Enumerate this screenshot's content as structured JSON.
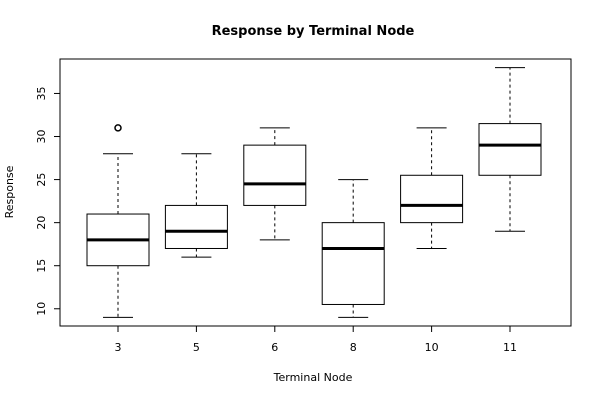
{
  "chart_data": {
    "type": "boxplot",
    "title": "Response by Terminal Node",
    "xlabel": "Terminal Node",
    "ylabel": "Response",
    "ylim": [
      8,
      39
    ],
    "yticks": [
      10,
      15,
      20,
      25,
      30,
      35
    ],
    "categories": [
      "3",
      "5",
      "6",
      "8",
      "10",
      "11"
    ],
    "boxes": [
      {
        "category": "3",
        "min": 9,
        "q1": 15,
        "median": 18,
        "q3": 21,
        "max": 28,
        "outliers": [
          31
        ]
      },
      {
        "category": "5",
        "min": 16,
        "q1": 17,
        "median": 19,
        "q3": 22,
        "max": 28,
        "outliers": []
      },
      {
        "category": "6",
        "min": 18,
        "q1": 22,
        "median": 24.5,
        "q3": 29,
        "max": 31,
        "outliers": []
      },
      {
        "category": "8",
        "min": 9,
        "q1": 10.5,
        "median": 17,
        "q3": 20,
        "max": 25,
        "outliers": []
      },
      {
        "category": "10",
        "min": 17,
        "q1": 20,
        "median": 22,
        "q3": 25.5,
        "max": 31,
        "outliers": []
      },
      {
        "category": "11",
        "min": 19,
        "q1": 25.5,
        "median": 29,
        "q3": 31.5,
        "max": 38,
        "outliers": []
      }
    ],
    "grid": false
  }
}
